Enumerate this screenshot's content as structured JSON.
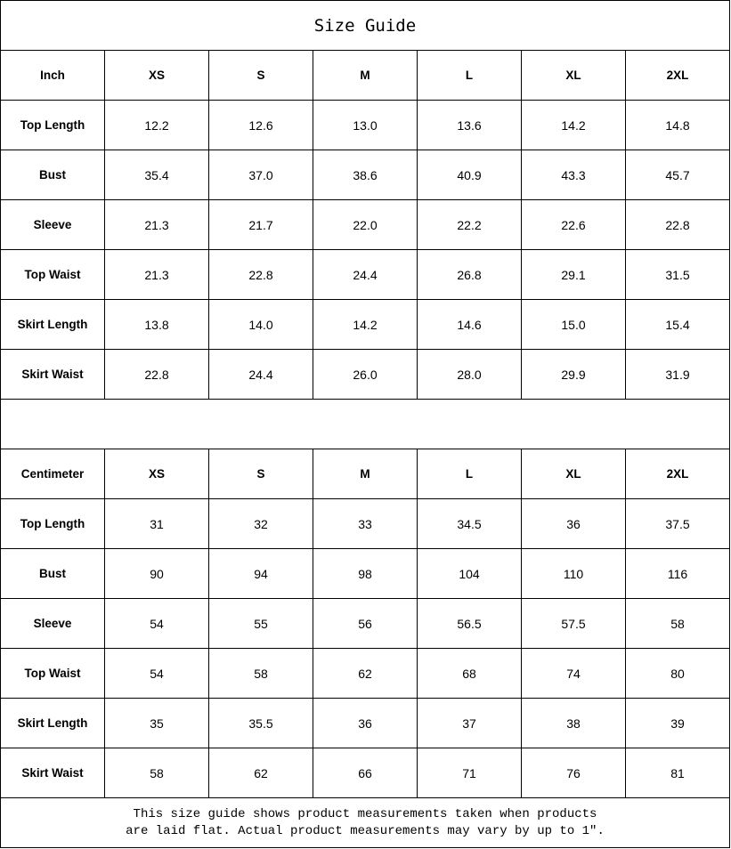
{
  "title": "Size Guide",
  "sizes": [
    "XS",
    "S",
    "M",
    "L",
    "XL",
    "2XL"
  ],
  "inch": {
    "unit_label": "Inch",
    "rows": [
      {
        "label": "Top Length",
        "values": [
          "12.2",
          "12.6",
          "13.0",
          "13.6",
          "14.2",
          "14.8"
        ]
      },
      {
        "label": "Bust",
        "values": [
          "35.4",
          "37.0",
          "38.6",
          "40.9",
          "43.3",
          "45.7"
        ]
      },
      {
        "label": "Sleeve",
        "values": [
          "21.3",
          "21.7",
          "22.0",
          "22.2",
          "22.6",
          "22.8"
        ]
      },
      {
        "label": "Top Waist",
        "values": [
          "21.3",
          "22.8",
          "24.4",
          "26.8",
          "29.1",
          "31.5"
        ]
      },
      {
        "label": "Skirt Length",
        "values": [
          "13.8",
          "14.0",
          "14.2",
          "14.6",
          "15.0",
          "15.4"
        ]
      },
      {
        "label": "Skirt Waist",
        "values": [
          "22.8",
          "24.4",
          "26.0",
          "28.0",
          "29.9",
          "31.9"
        ]
      }
    ]
  },
  "cm": {
    "unit_label": "Centimeter",
    "rows": [
      {
        "label": "Top Length",
        "values": [
          "31",
          "32",
          "33",
          "34.5",
          "36",
          "37.5"
        ]
      },
      {
        "label": "Bust",
        "values": [
          "90",
          "94",
          "98",
          "104",
          "110",
          "116"
        ]
      },
      {
        "label": "Sleeve",
        "values": [
          "54",
          "55",
          "56",
          "56.5",
          "57.5",
          "58"
        ]
      },
      {
        "label": "Top Waist",
        "values": [
          "54",
          "58",
          "62",
          "68",
          "74",
          "80"
        ]
      },
      {
        "label": "Skirt Length",
        "values": [
          "35",
          "35.5",
          "36",
          "37",
          "38",
          "39"
        ]
      },
      {
        "label": "Skirt Waist",
        "values": [
          "58",
          "62",
          "66",
          "71",
          "76",
          "81"
        ]
      }
    ]
  },
  "footer": {
    "line1": "This size guide shows product measurements taken when products",
    "line2": "are laid flat. Actual product measurements may vary by up to 1″."
  }
}
